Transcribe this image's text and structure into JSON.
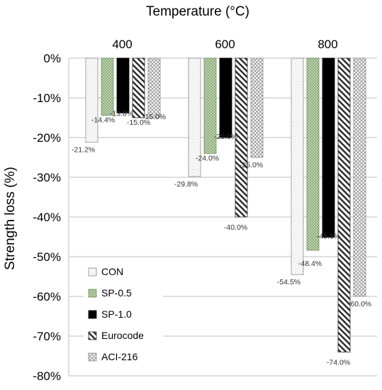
{
  "chart_data": {
    "type": "bar",
    "title": "Temperature (°C)",
    "ylabel": "Strength loss (%)",
    "xlabel": "",
    "categories": [
      "400",
      "600",
      "800"
    ],
    "ylim": [
      -80,
      0
    ],
    "yticks": [
      0,
      -10,
      -20,
      -30,
      -40,
      -50,
      -60,
      -70,
      -80
    ],
    "ytick_labels": [
      "0%",
      "-10%",
      "-20%",
      "-30%",
      "-40%",
      "-50%",
      "-60%",
      "-70%",
      "-80%"
    ],
    "categories_position": "top",
    "grid": true,
    "legend_position": "bottom-left",
    "series": [
      {
        "name": "CON",
        "values": [
          -21.2,
          -29.8,
          -54.5
        ],
        "labels": [
          "-21.2%",
          "-29.8%",
          "-54.5%"
        ],
        "pattern": "dots-light",
        "color": "#ffffff"
      },
      {
        "name": "SP-0.5",
        "values": [
          -14.4,
          -24.0,
          -48.4
        ],
        "labels": [
          "-14.4%",
          "-24.0%",
          "-48.4%"
        ],
        "pattern": "crosshatch-green",
        "color": "#c9dfbe"
      },
      {
        "name": "SP-1.0",
        "values": [
          -13.8,
          -20.0,
          -45.1
        ],
        "labels": [
          "-13.8%",
          "-20.0%",
          "-45.1%"
        ],
        "pattern": "solid",
        "color": "#000000"
      },
      {
        "name": "Eurocode",
        "values": [
          -15.0,
          -40.0,
          -74.0
        ],
        "labels": [
          "-15.0%",
          "-40.0%",
          "-74.0%"
        ],
        "pattern": "diagonal",
        "color": "#333333"
      },
      {
        "name": "ACI-216",
        "values": [
          -15.0,
          -25.0,
          -60.0
        ],
        "labels": [
          "-15.0%",
          "-25.0%",
          "-60.0%"
        ],
        "pattern": "checker",
        "color": "#999999"
      }
    ]
  }
}
